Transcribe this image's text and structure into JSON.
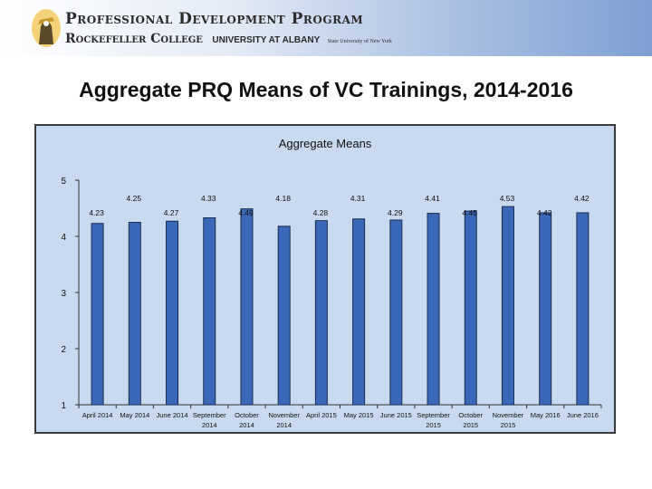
{
  "header": {
    "program_name": "Professional Development Program",
    "college_name": "Rockefeller College",
    "university_name": "UNIVERSITY AT ALBANY",
    "suny_name": "State University of New York"
  },
  "slide_title": "Aggregate PRQ Means of VC Trainings, 2014-2016",
  "colors": {
    "bar_fill": "#3a68b8",
    "bar_stroke": "#1b2d52",
    "plot_bg": "#c9d9ef"
  },
  "chart_data": {
    "type": "bar",
    "title": "Aggregate Means",
    "xlabel": "",
    "ylabel": "",
    "ylim": [
      1,
      5
    ],
    "yticks": [
      "1",
      "2",
      "3",
      "4",
      "5"
    ],
    "categories": [
      [
        "April 2014"
      ],
      [
        "May 2014"
      ],
      [
        "June 2014"
      ],
      [
        "September",
        "2014"
      ],
      [
        "October",
        "2014"
      ],
      [
        "November",
        "2014"
      ],
      [
        "April 2015"
      ],
      [
        "May 2015"
      ],
      [
        "June 2015"
      ],
      [
        "September",
        "2015"
      ],
      [
        "October",
        "2015"
      ],
      [
        "November",
        "2015"
      ],
      [
        "May 2016"
      ],
      [
        "June 2016"
      ]
    ],
    "values": [
      4.23,
      4.25,
      4.27,
      4.33,
      4.49,
      4.18,
      4.28,
      4.31,
      4.29,
      4.41,
      4.45,
      4.53,
      4.42,
      4.42
    ],
    "value_labels": [
      "4.23",
      "4.25",
      "4.27",
      "4.33",
      "4.49",
      "4.18",
      "4.28",
      "4.31",
      "4.29",
      "4.41",
      "4.45",
      "4.53",
      "4.42",
      "4.42"
    ]
  }
}
